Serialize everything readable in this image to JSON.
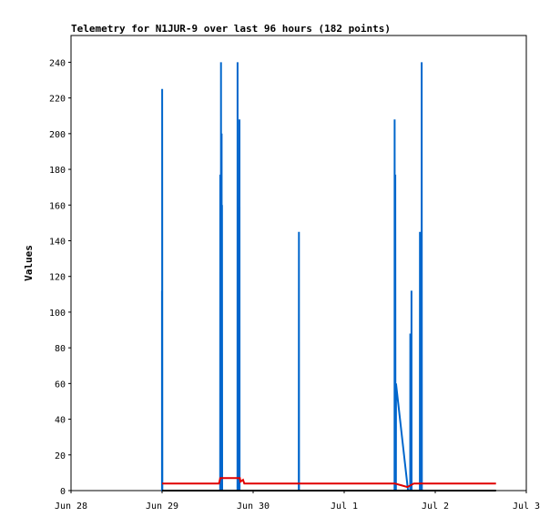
{
  "chart_data": {
    "type": "line",
    "title": "Telemetry for N1JUR-9 over last 96 hours (182 points)",
    "xlabel": "",
    "ylabel": "Values",
    "x_axis": {
      "type": "date",
      "range": [
        "2024-06-28T00:00",
        "2024-07-03T00:00"
      ],
      "ticks": [
        {
          "x": "2024-06-28T00:00",
          "label": "Jun 28"
        },
        {
          "x": "2024-06-29T00:00",
          "label": "Jun 29"
        },
        {
          "x": "2024-06-30T00:00",
          "label": "Jun 30"
        },
        {
          "x": "2024-07-01T00:00",
          "label": "Jul 1"
        },
        {
          "x": "2024-07-02T00:00",
          "label": "Jul 2"
        },
        {
          "x": "2024-07-03T00:00",
          "label": "Jul 3"
        }
      ]
    },
    "ylim": [
      0,
      255
    ],
    "yticks": [
      "0",
      "20",
      "40",
      "60",
      "80",
      "100",
      "120",
      "140",
      "160",
      "180",
      "200",
      "220",
      "240"
    ],
    "grid": false,
    "legend": "none",
    "series": [
      {
        "color": "#0066cc",
        "points": [
          [
            "2024-06-28T23:58",
            0
          ],
          [
            "2024-06-28T23:58",
            112
          ],
          [
            "2024-06-29T00:00",
            0
          ],
          [
            "2024-06-29T00:02",
            0
          ],
          [
            "2024-06-29T00:02",
            225
          ],
          [
            "2024-06-29T00:04",
            0
          ],
          [
            "2024-06-29T15:18",
            0
          ],
          [
            "2024-06-29T15:20",
            177
          ],
          [
            "2024-06-29T15:22",
            0
          ],
          [
            "2024-06-29T15:30",
            0
          ],
          [
            "2024-06-29T15:32",
            240
          ],
          [
            "2024-06-29T15:34",
            0
          ],
          [
            "2024-06-29T15:40",
            0
          ],
          [
            "2024-06-29T15:42",
            200
          ],
          [
            "2024-06-29T15:44",
            0
          ],
          [
            "2024-06-29T15:46",
            0
          ],
          [
            "2024-06-29T15:48",
            160
          ],
          [
            "2024-06-29T15:50",
            0
          ],
          [
            "2024-06-29T19:52",
            0
          ],
          [
            "2024-06-29T19:54",
            240
          ],
          [
            "2024-06-29T19:56",
            0
          ],
          [
            "2024-06-29T20:04",
            0
          ],
          [
            "2024-06-29T20:06",
            96
          ],
          [
            "2024-06-29T20:08",
            0
          ],
          [
            "2024-06-29T20:14",
            0
          ],
          [
            "2024-06-29T20:16",
            104
          ],
          [
            "2024-06-29T20:18",
            0
          ],
          [
            "2024-06-29T20:22",
            0
          ],
          [
            "2024-06-29T20:24",
            208
          ],
          [
            "2024-06-29T20:26",
            0
          ],
          [
            "2024-06-30T12:02",
            0
          ],
          [
            "2024-06-30T12:04",
            145
          ],
          [
            "2024-06-30T12:06",
            0
          ],
          [
            "2024-07-01T13:16",
            0
          ],
          [
            "2024-07-01T13:18",
            208
          ],
          [
            "2024-07-01T13:20",
            0
          ],
          [
            "2024-07-01T13:26",
            0
          ],
          [
            "2024-07-01T13:28",
            177
          ],
          [
            "2024-07-01T13:30",
            0
          ],
          [
            "2024-07-01T13:38",
            0
          ],
          [
            "2024-07-01T13:40",
            60
          ],
          [
            "2024-07-01T16:50",
            0
          ],
          [
            "2024-07-01T17:24",
            0
          ],
          [
            "2024-07-01T17:26",
            88
          ],
          [
            "2024-07-01T17:28",
            0
          ],
          [
            "2024-07-01T17:42",
            0
          ],
          [
            "2024-07-01T17:44",
            112
          ],
          [
            "2024-07-01T17:46",
            0
          ],
          [
            "2024-07-01T19:56",
            0
          ],
          [
            "2024-07-01T19:58",
            145
          ],
          [
            "2024-07-01T20:00",
            0
          ],
          [
            "2024-07-01T20:24",
            0
          ],
          [
            "2024-07-01T20:26",
            240
          ],
          [
            "2024-07-01T20:28",
            0
          ]
        ]
      },
      {
        "color": "#e00000",
        "points": [
          [
            "2024-06-29T00:00",
            4
          ],
          [
            "2024-06-29T15:00",
            4
          ],
          [
            "2024-06-29T15:20",
            7
          ],
          [
            "2024-06-29T20:30",
            7
          ],
          [
            "2024-06-29T20:40",
            5
          ],
          [
            "2024-06-29T21:20",
            6
          ],
          [
            "2024-06-29T21:40",
            4
          ],
          [
            "2024-07-01T13:20",
            4
          ],
          [
            "2024-07-01T15:00",
            3
          ],
          [
            "2024-07-01T16:40",
            2
          ],
          [
            "2024-07-01T18:20",
            4
          ],
          [
            "2024-07-02T16:00",
            4
          ]
        ]
      },
      {
        "color": "#000000",
        "points": [
          [
            "2024-06-29T00:00",
            0
          ],
          [
            "2024-07-02T16:00",
            0
          ]
        ]
      }
    ]
  }
}
